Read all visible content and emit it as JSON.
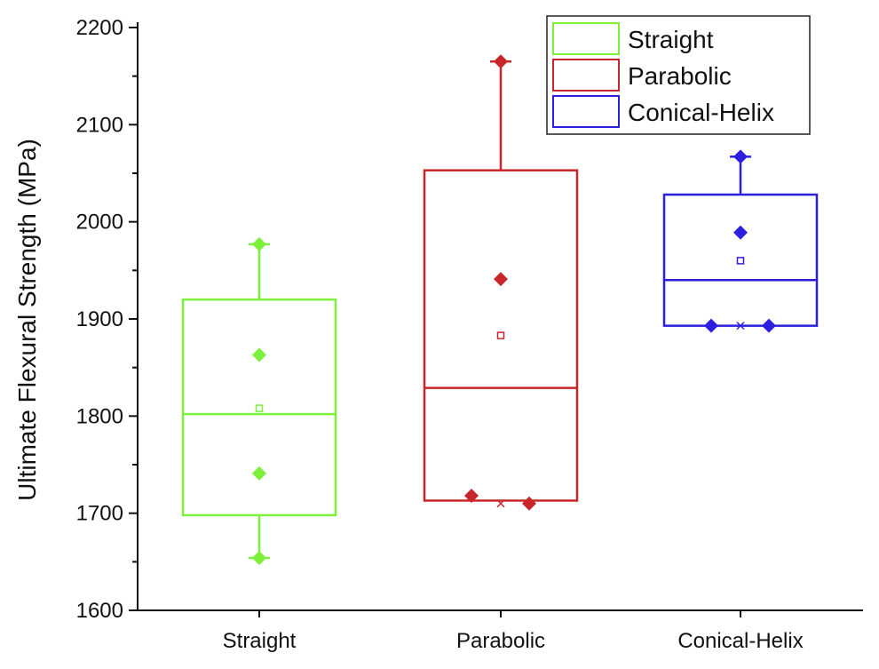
{
  "chart_data": {
    "type": "box",
    "title": "",
    "xlabel": "",
    "ylabel": "Ultimate Flexural Strength (MPa)",
    "ylim": [
      1600,
      2200
    ],
    "yticks": [
      1600,
      1700,
      1800,
      1900,
      2000,
      2100,
      2200
    ],
    "yticks_minor_step": 50,
    "grid": false,
    "legend_position": "top-right",
    "categories": [
      "Straight",
      "Parabolic",
      "Conical-Helix"
    ],
    "legend": [
      "Straight",
      "Parabolic",
      "Conical-Helix"
    ],
    "series": [
      {
        "name": "Straight",
        "color": "#7cf03a",
        "q1": 1698,
        "median": 1802,
        "q3": 1920,
        "whisker_low": 1654,
        "whisker_high": 1977,
        "mean": 1808,
        "data_points": [
          1654,
          1741,
          1863,
          1977
        ],
        "range_markers": []
      },
      {
        "name": "Parabolic",
        "color": "#c8262a",
        "q1": 1713,
        "median": 1829,
        "q3": 2053,
        "whisker_low": 1713,
        "whisker_high": 2165,
        "mean": 1883,
        "data_points": [
          1718,
          1710,
          1941,
          2165
        ],
        "range_markers": [
          1710
        ]
      },
      {
        "name": "Conical-Helix",
        "color": "#2d1fe0",
        "q1": 1893,
        "median": 1940,
        "q3": 2028,
        "whisker_low": 1893,
        "whisker_high": 2067,
        "mean": 1960,
        "data_points": [
          1893,
          1893,
          1989,
          2067
        ],
        "range_markers": [
          1893
        ]
      }
    ]
  }
}
